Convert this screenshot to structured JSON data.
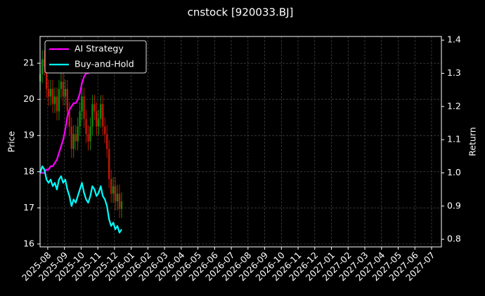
{
  "chart_data": {
    "type": "candlestick",
    "title": "cnstock [920033.BJ]",
    "ylabel": "Price",
    "y2label": "Return",
    "x": [
      -0.45,
      -0.325,
      -0.2,
      -0.075,
      0.05,
      0.175,
      0.3,
      0.425,
      0.55,
      0.675,
      0.8,
      0.925,
      1.05,
      1.175,
      1.3,
      1.425,
      1.55,
      1.675,
      1.8,
      1.925,
      2.05,
      2.175,
      2.3,
      2.425,
      2.55,
      2.675,
      2.8,
      2.925,
      3.05,
      3.175,
      3.3,
      3.425,
      3.55,
      3.675,
      3.8,
      3.925,
      4.05,
      4.175,
      4.3,
      4.425
    ],
    "open": [
      20.5,
      20.7,
      21.11,
      20.91,
      20.29,
      20.08,
      20.29,
      19.87,
      20.08,
      19.67,
      20.29,
      20.49,
      20.08,
      20.29,
      19.67,
      19.25,
      18.63,
      19.04,
      18.84,
      19.25,
      19.67,
      20.08,
      19.46,
      19.04,
      18.84,
      19.25,
      19.87,
      19.67,
      19.25,
      19.46,
      19.87,
      19.25,
      19.04,
      18.63,
      17.8,
      17.39,
      17.6,
      17.18,
      17.39,
      16.97
    ],
    "high": [
      20.95,
      21.36,
      21.36,
      21.16,
      20.54,
      20.54,
      20.54,
      20.33,
      20.33,
      20.54,
      20.74,
      20.74,
      20.54,
      20.54,
      19.92,
      19.5,
      19.29,
      19.29,
      19.5,
      19.92,
      20.33,
      20.33,
      19.71,
      19.29,
      19.5,
      20.12,
      20.12,
      19.92,
      19.71,
      20.12,
      20.12,
      19.5,
      19.29,
      18.88,
      18.05,
      17.85,
      17.85,
      17.64,
      17.64,
      17.43
    ],
    "low": [
      20.25,
      20.45,
      20.66,
      20.04,
      19.83,
      19.83,
      19.62,
      19.62,
      19.42,
      19.42,
      20.04,
      19.83,
      19.83,
      19.42,
      19.0,
      18.38,
      18.38,
      18.59,
      18.59,
      19.0,
      19.42,
      19.21,
      18.79,
      18.59,
      18.59,
      19.0,
      19.42,
      19.0,
      19.0,
      19.21,
      19.0,
      18.79,
      18.38,
      17.55,
      17.14,
      17.14,
      16.93,
      16.93,
      16.72,
      16.72
    ],
    "close": [
      20.7,
      21.11,
      20.91,
      20.29,
      20.08,
      20.29,
      19.87,
      20.08,
      19.67,
      20.29,
      20.49,
      20.08,
      20.29,
      19.67,
      19.25,
      18.63,
      19.04,
      18.84,
      19.25,
      19.67,
      20.08,
      19.46,
      19.04,
      18.84,
      19.25,
      19.87,
      19.67,
      19.25,
      19.46,
      19.87,
      19.25,
      19.04,
      18.63,
      17.8,
      17.39,
      17.6,
      17.18,
      17.39,
      16.97,
      17.18
    ],
    "up_color": "#108a10",
    "down_color": "#c01808",
    "series": [
      {
        "name": "AI Strategy",
        "color": "#ff00ff",
        "axis": "y2",
        "values": [
          1.0,
          1.0,
          1.0,
          1.01,
          1.01,
          1.02,
          1.02,
          1.03,
          1.04,
          1.06,
          1.08,
          1.1,
          1.13,
          1.17,
          1.19,
          1.2,
          1.21,
          1.21,
          1.22,
          1.24,
          1.27,
          1.29,
          1.3,
          1.3,
          1.31,
          1.32,
          1.33,
          1.33,
          1.33,
          1.34,
          1.34,
          1.34,
          1.34,
          1.34,
          1.35,
          1.35,
          1.35,
          1.35,
          1.35,
          1.35
        ]
      },
      {
        "name": "Buy-and-Hold",
        "color": "#00ffff",
        "axis": "y2",
        "values": [
          1.0,
          1.02,
          1.01,
          0.98,
          0.97,
          0.98,
          0.96,
          0.97,
          0.95,
          0.98,
          0.99,
          0.97,
          0.98,
          0.95,
          0.93,
          0.9,
          0.92,
          0.91,
          0.93,
          0.95,
          0.97,
          0.94,
          0.92,
          0.91,
          0.93,
          0.96,
          0.95,
          0.93,
          0.94,
          0.96,
          0.93,
          0.92,
          0.9,
          0.86,
          0.84,
          0.85,
          0.83,
          0.84,
          0.82,
          0.83
        ]
      }
    ],
    "xlim": [
      -0.46,
      23.59
    ],
    "xticks": [
      {
        "value": 0,
        "label": "2025-08"
      },
      {
        "value": 1,
        "label": "2025-09"
      },
      {
        "value": 2,
        "label": "2025-10"
      },
      {
        "value": 3,
        "label": "2025-11"
      },
      {
        "value": 4,
        "label": "2025-12"
      },
      {
        "value": 5,
        "label": "2026-01"
      },
      {
        "value": 6,
        "label": "2026-02"
      },
      {
        "value": 7,
        "label": "2026-03"
      },
      {
        "value": 8,
        "label": "2026-04"
      },
      {
        "value": 9,
        "label": "2026-05"
      },
      {
        "value": 10,
        "label": "2026-06"
      },
      {
        "value": 11,
        "label": "2026-07"
      },
      {
        "value": 12,
        "label": "2026-08"
      },
      {
        "value": 13,
        "label": "2026-09"
      },
      {
        "value": 14,
        "label": "2026-10"
      },
      {
        "value": 15,
        "label": "2026-11"
      },
      {
        "value": 16,
        "label": "2026-12"
      },
      {
        "value": 17,
        "label": "2027-01"
      },
      {
        "value": 18,
        "label": "2027-02"
      },
      {
        "value": 19,
        "label": "2027-03"
      },
      {
        "value": 20,
        "label": "2027-04"
      },
      {
        "value": 21,
        "label": "2027-05"
      },
      {
        "value": 22,
        "label": "2027-06"
      },
      {
        "value": 23,
        "label": "2027-07"
      }
    ],
    "ylim": [
      15.92,
      21.74
    ],
    "yticks": [
      16,
      17,
      18,
      19,
      20,
      21
    ],
    "y2lim": [
      0.777,
      1.411
    ],
    "y2ticks": [
      0.8,
      0.9,
      {
        "value": 1.0,
        "label": "1.0"
      },
      1.1,
      1.2,
      1.3,
      1.4
    ],
    "grid": true,
    "legend": "upper left"
  }
}
